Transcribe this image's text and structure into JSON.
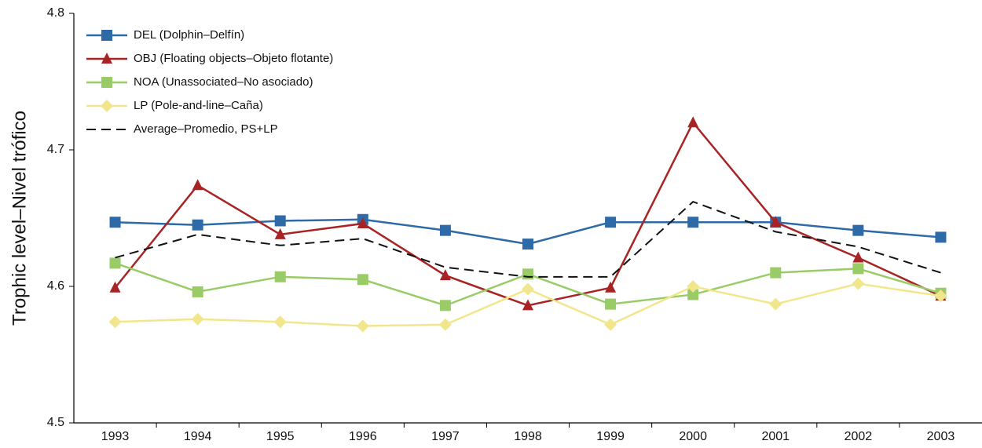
{
  "chart_data": {
    "type": "line",
    "y_label": "Trophic level–Nivel trófico",
    "categories": [
      "1993",
      "1994",
      "1995",
      "1996",
      "1997",
      "1998",
      "1999",
      "2000",
      "2001",
      "2002",
      "2003"
    ],
    "series": [
      {
        "name": "DEL (Dolphin–Delfín)",
        "color": "#2e6aa8",
        "marker": "square",
        "values": [
          4.647,
          4.645,
          4.648,
          4.649,
          4.641,
          4.631,
          4.647,
          4.647,
          4.647,
          4.641,
          4.636
        ]
      },
      {
        "name": "OBJ (Floating objects–Objeto flotante)",
        "color": "#a82424",
        "marker": "triangle",
        "values": [
          4.599,
          4.674,
          4.638,
          4.646,
          4.608,
          4.586,
          4.599,
          4.72,
          4.647,
          4.621,
          4.593
        ]
      },
      {
        "name": "NOA (Unassociated–No asociado)",
        "color": "#99cc66",
        "marker": "square",
        "values": [
          4.617,
          4.596,
          4.607,
          4.605,
          4.586,
          4.609,
          4.587,
          4.594,
          4.61,
          4.613,
          4.595
        ]
      },
      {
        "name": "LP (Pole-and-line–Caña)",
        "color": "#f2e68c",
        "marker": "diamond",
        "values": [
          4.574,
          4.576,
          4.574,
          4.571,
          4.572,
          4.598,
          4.572,
          4.6,
          4.587,
          4.602,
          4.593
        ]
      },
      {
        "name": "Average–Promedio, PS+LP",
        "color": "#111111",
        "marker": "none",
        "dashed": true,
        "values": [
          4.621,
          4.638,
          4.63,
          4.635,
          4.614,
          4.607,
          4.607,
          4.662,
          4.64,
          4.629,
          4.61
        ]
      }
    ],
    "ylim": [
      4.5,
      4.8
    ],
    "yticks": [
      4.5,
      4.6,
      4.7,
      4.8
    ],
    "grid": false,
    "legend": "upper left"
  }
}
